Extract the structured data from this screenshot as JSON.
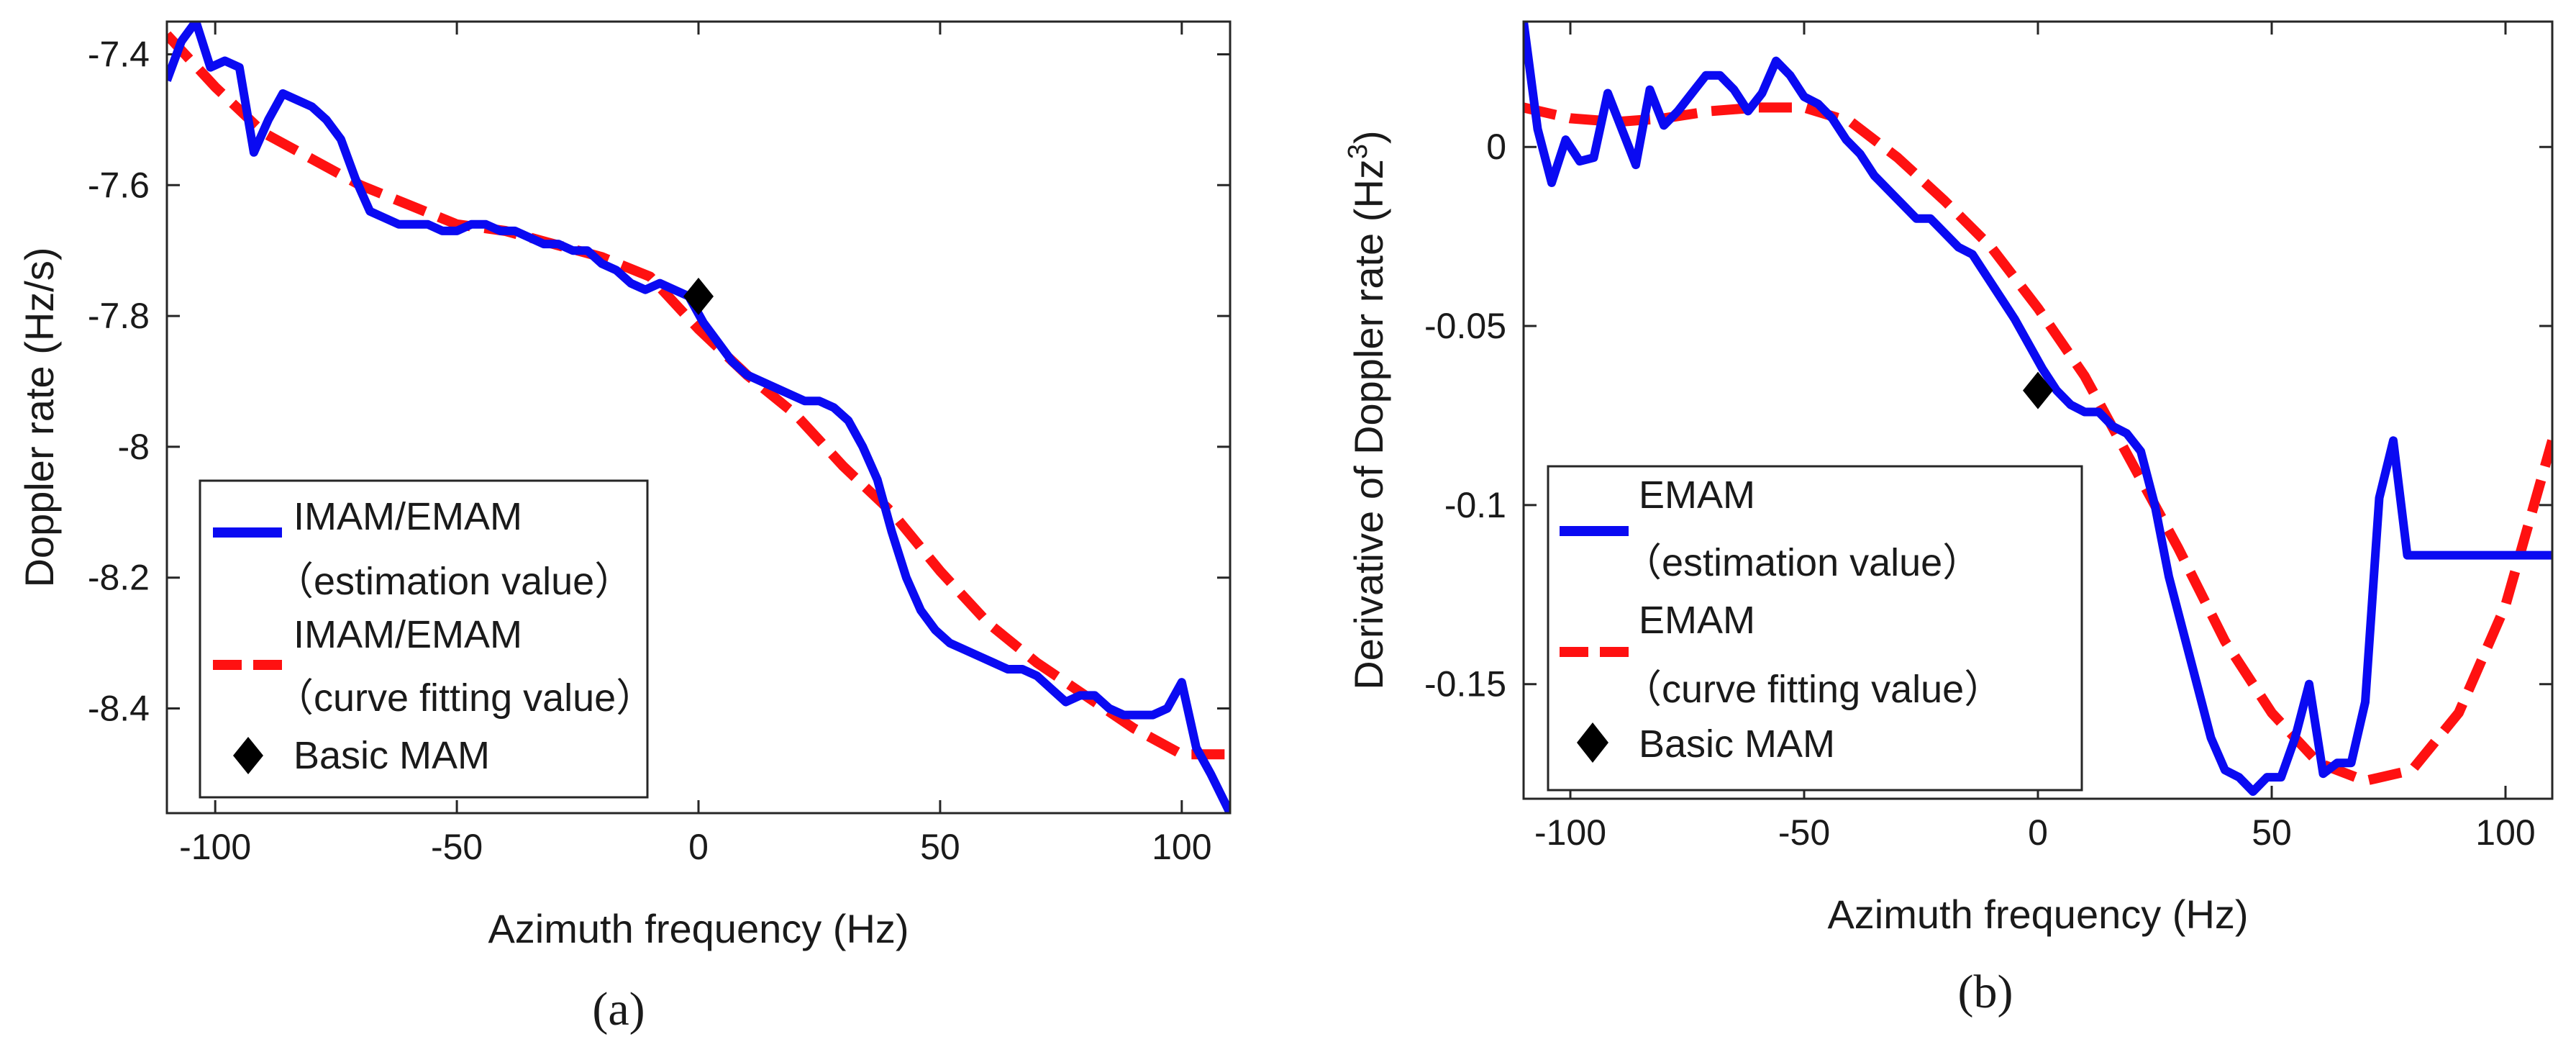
{
  "colors": {
    "estimation": "#0a0af2",
    "fit": "#ff1111",
    "marker": "#000000"
  },
  "chart_data": [
    {
      "type": "line",
      "panel": "a",
      "panel_label": "(a)",
      "xlabel": "Azimuth frequency (Hz)",
      "ylabel": "Doppler rate (Hz/s)",
      "xlim": [
        -110,
        110
      ],
      "ylim": [
        -8.56,
        -7.35
      ],
      "xticks": [
        -100,
        -50,
        0,
        50,
        100
      ],
      "xtick_labels": [
        "-100",
        "-50",
        "0",
        "50",
        "100"
      ],
      "yticks": [
        -7.4,
        -7.6,
        -7.8,
        -8.0,
        -8.2,
        -8.4
      ],
      "ytick_labels": [
        "-7.4",
        "-7.6",
        "-7.8",
        "-8",
        "-8.2",
        "-8.4"
      ],
      "legend": {
        "position": "bottom-left",
        "estimation_lines": [
          "IMAM/EMAM",
          "（estimation value）"
        ],
        "fit_lines": [
          "IMAM/EMAM",
          "（curve fitting value）"
        ],
        "marker_label": "Basic MAM"
      },
      "series": [
        {
          "name": "IMAM/EMAM (estimation value)",
          "style": "solid",
          "x": [
            -110,
            -107,
            -104,
            -101,
            -98,
            -95,
            -92,
            -89,
            -86,
            -83,
            -80,
            -77,
            -74,
            -71,
            -68,
            -65,
            -62,
            -59,
            -56,
            -53,
            -50,
            -47,
            -44,
            -41,
            -38,
            -35,
            -32,
            -29,
            -26,
            -23,
            -20,
            -17,
            -14,
            -11,
            -8,
            -5,
            -2,
            1,
            4,
            7,
            10,
            13,
            16,
            19,
            22,
            25,
            28,
            31,
            34,
            37,
            40,
            43,
            46,
            49,
            52,
            55,
            58,
            61,
            64,
            67,
            70,
            73,
            76,
            79,
            82,
            85,
            88,
            91,
            94,
            97,
            100,
            103,
            106,
            110
          ],
          "y": [
            -7.44,
            -7.38,
            -7.35,
            -7.42,
            -7.41,
            -7.42,
            -7.55,
            -7.5,
            -7.46,
            -7.47,
            -7.48,
            -7.5,
            -7.53,
            -7.59,
            -7.64,
            -7.65,
            -7.66,
            -7.66,
            -7.66,
            -7.67,
            -7.67,
            -7.66,
            -7.66,
            -7.67,
            -7.67,
            -7.68,
            -7.69,
            -7.69,
            -7.7,
            -7.7,
            -7.72,
            -7.73,
            -7.75,
            -7.76,
            -7.75,
            -7.76,
            -7.77,
            -7.81,
            -7.84,
            -7.87,
            -7.89,
            -7.9,
            -7.91,
            -7.92,
            -7.93,
            -7.93,
            -7.94,
            -7.96,
            -8.0,
            -8.05,
            -8.13,
            -8.2,
            -8.25,
            -8.28,
            -8.3,
            -8.31,
            -8.32,
            -8.33,
            -8.34,
            -8.34,
            -8.35,
            -8.37,
            -8.39,
            -8.38,
            -8.38,
            -8.4,
            -8.41,
            -8.41,
            -8.41,
            -8.4,
            -8.36,
            -8.46,
            -8.5,
            -8.56
          ]
        },
        {
          "name": "IMAM/EMAM (curve fitting value)",
          "style": "dashed",
          "x": [
            -110,
            -100,
            -90,
            -80,
            -70,
            -60,
            -50,
            -40,
            -30,
            -20,
            -10,
            0,
            10,
            20,
            30,
            40,
            50,
            60,
            70,
            80,
            90,
            100,
            110
          ],
          "y": [
            -7.37,
            -7.45,
            -7.52,
            -7.56,
            -7.6,
            -7.63,
            -7.66,
            -7.67,
            -7.69,
            -7.71,
            -7.74,
            -7.82,
            -7.89,
            -7.95,
            -8.03,
            -8.1,
            -8.19,
            -8.27,
            -8.33,
            -8.38,
            -8.43,
            -8.47,
            -8.47
          ]
        },
        {
          "name": "Basic MAM",
          "style": "marker",
          "x": [
            0
          ],
          "y": [
            -7.77
          ]
        }
      ]
    },
    {
      "type": "line",
      "panel": "b",
      "panel_label": "(b)",
      "xlabel": "Azimuth frequency (Hz)",
      "ylabel": "Derivative of Doppler rate (Hz",
      "ylabel_sup": "3",
      "ylabel_end": ")",
      "xlim": [
        -110,
        110
      ],
      "ylim": [
        -0.182,
        0.035
      ],
      "xticks": [
        -100,
        -50,
        0,
        50,
        100
      ],
      "xtick_labels": [
        "-100",
        "-50",
        "0",
        "50",
        "100"
      ],
      "yticks": [
        0,
        -0.05,
        -0.1,
        -0.15
      ],
      "ytick_labels": [
        "0",
        "-0.05",
        "-0.1",
        "-0.15"
      ],
      "legend": {
        "position": "bottom-left",
        "estimation_lines": [
          "EMAM",
          "（estimation value）"
        ],
        "fit_lines": [
          "EMAM",
          "（curve fitting value）"
        ],
        "marker_label": "Basic MAM"
      },
      "series": [
        {
          "name": "EMAM (estimation value)",
          "style": "solid",
          "x": [
            -110,
            -107,
            -104,
            -101,
            -98,
            -95,
            -92,
            -89,
            -86,
            -83,
            -80,
            -77,
            -74,
            -71,
            -68,
            -65,
            -62,
            -59,
            -56,
            -53,
            -50,
            -47,
            -44,
            -41,
            -38,
            -35,
            -32,
            -29,
            -26,
            -23,
            -20,
            -17,
            -14,
            -11,
            -8,
            -5,
            -2,
            1,
            4,
            7,
            10,
            13,
            16,
            19,
            22,
            25,
            28,
            31,
            34,
            37,
            40,
            43,
            46,
            49,
            52,
            55,
            58,
            61,
            64,
            67,
            70,
            73,
            76,
            79,
            82,
            85,
            88,
            91,
            94,
            97,
            100,
            103,
            106,
            110
          ],
          "y": [
            0.035,
            0.005,
            -0.01,
            0.002,
            -0.004,
            -0.003,
            0.015,
            0.005,
            -0.005,
            0.016,
            0.006,
            0.01,
            0.015,
            0.02,
            0.02,
            0.016,
            0.01,
            0.015,
            0.024,
            0.02,
            0.014,
            0.012,
            0.008,
            0.002,
            -0.002,
            -0.008,
            -0.012,
            -0.016,
            -0.02,
            -0.02,
            -0.024,
            -0.028,
            -0.03,
            -0.036,
            -0.042,
            -0.048,
            -0.055,
            -0.062,
            -0.068,
            -0.072,
            -0.074,
            -0.074,
            -0.078,
            -0.08,
            -0.085,
            -0.1,
            -0.12,
            -0.135,
            -0.15,
            -0.165,
            -0.174,
            -0.176,
            -0.18,
            -0.176,
            -0.176,
            -0.165,
            -0.15,
            -0.175,
            -0.172,
            -0.172,
            -0.155,
            -0.098,
            -0.082,
            -0.114,
            -0.114,
            -0.114,
            -0.114,
            -0.114,
            -0.114,
            -0.114,
            -0.114,
            -0.114,
            -0.114,
            -0.114
          ]
        },
        {
          "name": "EMAM (curve fitting value)",
          "style": "dashed",
          "x": [
            -110,
            -100,
            -90,
            -80,
            -70,
            -60,
            -50,
            -40,
            -30,
            -20,
            -10,
            0,
            10,
            20,
            30,
            40,
            50,
            60,
            70,
            80,
            90,
            100,
            110
          ],
          "y": [
            0.011,
            0.008,
            0.007,
            0.008,
            0.01,
            0.011,
            0.011,
            0.007,
            -0.003,
            -0.015,
            -0.028,
            -0.045,
            -0.064,
            -0.088,
            -0.112,
            -0.138,
            -0.158,
            -0.172,
            -0.177,
            -0.174,
            -0.158,
            -0.128,
            -0.082
          ]
        },
        {
          "name": "Basic MAM",
          "style": "marker",
          "x": [
            0
          ],
          "y": [
            -0.068
          ]
        }
      ]
    }
  ]
}
